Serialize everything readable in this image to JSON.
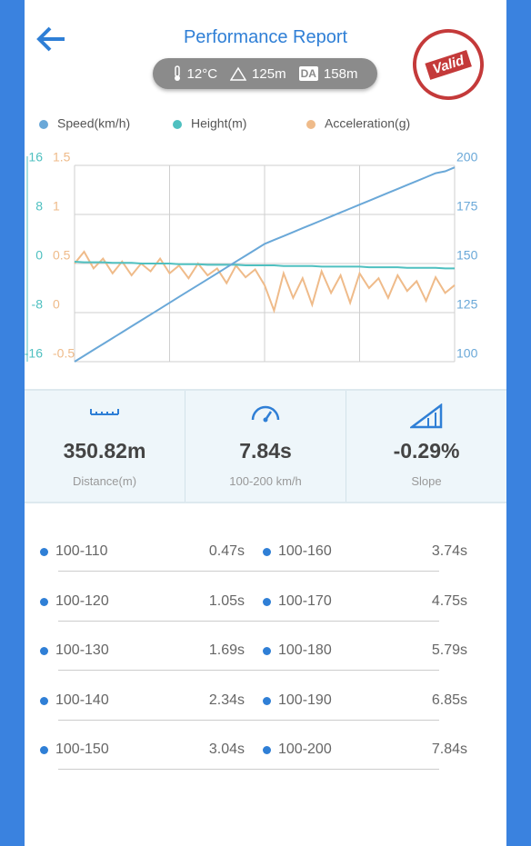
{
  "header": {
    "title": "Performance Report",
    "conditions": {
      "temperature": "12°C",
      "altitude": "125m",
      "da_badge": "DA",
      "density_altitude": "158m"
    },
    "stamp": "Valid"
  },
  "chart_data": {
    "type": "line",
    "series": [
      {
        "name": "Speed(km/h)",
        "color": "#6aa8d8",
        "axis": "y2",
        "values": [
          100,
          103,
          106,
          109,
          112,
          115,
          118,
          121,
          124,
          127,
          130,
          133,
          136,
          139,
          142,
          145,
          148,
          151,
          154,
          157,
          160,
          162,
          164,
          166,
          168,
          170,
          172,
          174,
          176,
          178,
          180,
          182,
          184,
          186,
          188,
          190,
          192,
          194,
          196,
          197,
          199
        ]
      },
      {
        "name": "Height(m)",
        "color": "#4fc0c0",
        "axis": "y",
        "values": [
          0.3,
          0.2,
          0.2,
          0.2,
          0.1,
          0.1,
          0.1,
          0,
          0,
          0,
          0,
          -0.1,
          -0.1,
          -0.1,
          -0.2,
          -0.2,
          -0.2,
          -0.2,
          -0.3,
          -0.3,
          -0.3,
          -0.3,
          -0.4,
          -0.4,
          -0.4,
          -0.4,
          -0.5,
          -0.5,
          -0.5,
          -0.5,
          -0.5,
          -0.6,
          -0.6,
          -0.6,
          -0.6,
          -0.7,
          -0.7,
          -0.7,
          -0.7,
          -0.8,
          -0.8
        ]
      },
      {
        "name": "Acceleration(g)",
        "color": "#efbb8a",
        "axis": "y3",
        "values": [
          0.5,
          0.62,
          0.45,
          0.55,
          0.4,
          0.52,
          0.38,
          0.5,
          0.42,
          0.55,
          0.4,
          0.48,
          0.35,
          0.5,
          0.38,
          0.45,
          0.3,
          0.48,
          0.36,
          0.44,
          0.28,
          0.02,
          0.4,
          0.15,
          0.35,
          0.08,
          0.42,
          0.2,
          0.38,
          0.1,
          0.4,
          0.25,
          0.35,
          0.15,
          0.38,
          0.22,
          0.32,
          0.12,
          0.36,
          0.2,
          0.28
        ]
      }
    ],
    "ylim": [
      -16,
      16
    ],
    "yticks": [
      -16,
      -8,
      0,
      8,
      16
    ],
    "y3lim": [
      -0.5,
      1.5
    ],
    "y3ticks": [
      -0.5,
      0,
      0.5,
      1,
      1.5
    ],
    "y2lim": [
      100,
      200
    ],
    "y2ticks": [
      100,
      125,
      150,
      175,
      200
    ],
    "grid": true,
    "legend": "top"
  },
  "stats": [
    {
      "value": "350.82m",
      "label": "Distance(m)"
    },
    {
      "value": "7.84s",
      "label": "100-200 km/h"
    },
    {
      "value": "-0.29%",
      "label": "Slope"
    }
  ],
  "splits": [
    [
      {
        "range": "100-110",
        "time": "0.47s"
      },
      {
        "range": "100-160",
        "time": "3.74s"
      }
    ],
    [
      {
        "range": "100-120",
        "time": "1.05s"
      },
      {
        "range": "100-170",
        "time": "4.75s"
      }
    ],
    [
      {
        "range": "100-130",
        "time": "1.69s"
      },
      {
        "range": "100-180",
        "time": "5.79s"
      }
    ],
    [
      {
        "range": "100-140",
        "time": "2.34s"
      },
      {
        "range": "100-190",
        "time": "6.85s"
      }
    ],
    [
      {
        "range": "100-150",
        "time": "3.04s"
      },
      {
        "range": "100-200",
        "time": "7.84s"
      }
    ]
  ]
}
